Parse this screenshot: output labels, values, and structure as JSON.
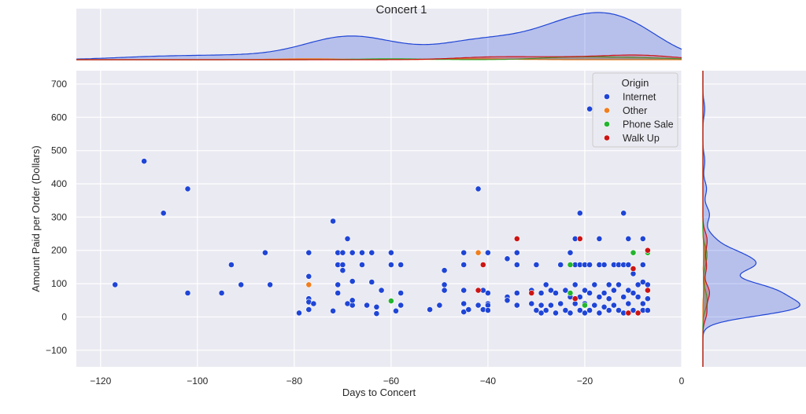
{
  "chart_data": {
    "type": "scatter",
    "title": "Concert 1",
    "xlabel": "Days to Concert",
    "ylabel": "Amount Paid per Order (Dollars)",
    "xlim": [
      -125,
      0
    ],
    "ylim": [
      -150,
      740
    ],
    "x_ticks": [
      -120,
      -100,
      -80,
      -60,
      -40,
      -20,
      0
    ],
    "y_ticks": [
      -100,
      0,
      100,
      200,
      300,
      400,
      500,
      600,
      700
    ],
    "grid": true,
    "legend": {
      "title": "Origin",
      "placement": "top-right"
    },
    "marginals": {
      "top": "kde of Days to Concert by Origin",
      "right": "kde of Amount Paid by Origin"
    },
    "series": [
      {
        "name": "Internet",
        "color": "#1f45d6",
        "points": [
          [
            -117,
            97
          ],
          [
            -111,
            468
          ],
          [
            -107,
            312
          ],
          [
            -102,
            385
          ],
          [
            -102,
            72
          ],
          [
            -95,
            72
          ],
          [
            -93,
            157
          ],
          [
            -91,
            97
          ],
          [
            -86,
            193
          ],
          [
            -85,
            97
          ],
          [
            -79,
            12
          ],
          [
            -77,
            193
          ],
          [
            -77,
            122
          ],
          [
            -77,
            55
          ],
          [
            -77,
            45
          ],
          [
            -77,
            22
          ],
          [
            -76,
            40
          ],
          [
            -72,
            288
          ],
          [
            -72,
            18
          ],
          [
            -71,
            193
          ],
          [
            -71,
            157
          ],
          [
            -71,
            97
          ],
          [
            -71,
            72
          ],
          [
            -70,
            193
          ],
          [
            -70,
            157
          ],
          [
            -70,
            140
          ],
          [
            -69,
            235
          ],
          [
            -69,
            40
          ],
          [
            -68,
            35
          ],
          [
            -68,
            50
          ],
          [
            -68,
            107
          ],
          [
            -68,
            193
          ],
          [
            -66,
            157
          ],
          [
            -66,
            193
          ],
          [
            -65,
            35
          ],
          [
            -64,
            105
          ],
          [
            -64,
            193
          ],
          [
            -63,
            30
          ],
          [
            -63,
            10
          ],
          [
            -62,
            80
          ],
          [
            -60,
            193
          ],
          [
            -60,
            157
          ],
          [
            -59,
            18
          ],
          [
            -58,
            157
          ],
          [
            -58,
            72
          ],
          [
            -58,
            35
          ],
          [
            -52,
            22
          ],
          [
            -50,
            35
          ],
          [
            -49,
            140
          ],
          [
            -49,
            97
          ],
          [
            -49,
            80
          ],
          [
            -45,
            193
          ],
          [
            -45,
            157
          ],
          [
            -45,
            80
          ],
          [
            -45,
            40
          ],
          [
            -45,
            15
          ],
          [
            -44,
            22
          ],
          [
            -42,
            385
          ],
          [
            -42,
            35
          ],
          [
            -41,
            22
          ],
          [
            -40,
            193
          ],
          [
            -40,
            40
          ],
          [
            -40,
            35
          ],
          [
            -40,
            20
          ],
          [
            -40,
            72
          ],
          [
            -41,
            80
          ],
          [
            -36,
            175
          ],
          [
            -36,
            60
          ],
          [
            -36,
            50
          ],
          [
            -34,
            193
          ],
          [
            -34,
            157
          ],
          [
            -34,
            72
          ],
          [
            -34,
            35
          ],
          [
            -31,
            80
          ],
          [
            -31,
            40
          ],
          [
            -30,
            157
          ],
          [
            -30,
            20
          ],
          [
            -29,
            72
          ],
          [
            -29,
            35
          ],
          [
            -29,
            12
          ],
          [
            -28,
            97
          ],
          [
            -28,
            20
          ],
          [
            -27,
            80
          ],
          [
            -27,
            35
          ],
          [
            -26,
            72
          ],
          [
            -26,
            12
          ],
          [
            -25,
            157
          ],
          [
            -25,
            40
          ],
          [
            -24,
            80
          ],
          [
            -24,
            20
          ],
          [
            -23,
            193
          ],
          [
            -23,
            157
          ],
          [
            -23,
            60
          ],
          [
            -23,
            12
          ],
          [
            -22,
            235
          ],
          [
            -22,
            157
          ],
          [
            -22,
            97
          ],
          [
            -22,
            40
          ],
          [
            -21,
            312
          ],
          [
            -21,
            157
          ],
          [
            -21,
            60
          ],
          [
            -21,
            20
          ],
          [
            -20,
            157
          ],
          [
            -20,
            80
          ],
          [
            -20,
            40
          ],
          [
            -20,
            12
          ],
          [
            -19,
            625
          ],
          [
            -19,
            157
          ],
          [
            -19,
            72
          ],
          [
            -19,
            20
          ],
          [
            -18,
            97
          ],
          [
            -18,
            35
          ],
          [
            -17,
            235
          ],
          [
            -17,
            157
          ],
          [
            -17,
            60
          ],
          [
            -17,
            12
          ],
          [
            -16,
            157
          ],
          [
            -16,
            72
          ],
          [
            -16,
            30
          ],
          [
            -15,
            97
          ],
          [
            -15,
            55
          ],
          [
            -15,
            20
          ],
          [
            -14,
            157
          ],
          [
            -14,
            80
          ],
          [
            -14,
            35
          ],
          [
            -13,
            157
          ],
          [
            -13,
            97
          ],
          [
            -13,
            20
          ],
          [
            -12,
            312
          ],
          [
            -12,
            157
          ],
          [
            -12,
            60
          ],
          [
            -12,
            12
          ],
          [
            -11,
            235
          ],
          [
            -11,
            157
          ],
          [
            -11,
            80
          ],
          [
            -11,
            40
          ],
          [
            -10,
            193
          ],
          [
            -10,
            130
          ],
          [
            -10,
            72
          ],
          [
            -10,
            20
          ],
          [
            -9,
            97
          ],
          [
            -9,
            60
          ],
          [
            -9,
            12
          ],
          [
            -8,
            235
          ],
          [
            -8,
            157
          ],
          [
            -8,
            105
          ],
          [
            -8,
            40
          ],
          [
            -8,
            20
          ],
          [
            -7,
            193
          ],
          [
            -7,
            97
          ],
          [
            -7,
            55
          ],
          [
            -7,
            20
          ]
        ]
      },
      {
        "name": "Other",
        "color": "#f07e1e",
        "points": [
          [
            -77,
            97
          ],
          [
            -42,
            193
          ]
        ]
      },
      {
        "name": "Phone Sale",
        "color": "#22b52e",
        "points": [
          [
            -60,
            48
          ],
          [
            -23,
            157
          ],
          [
            -23,
            72
          ],
          [
            -20,
            35
          ],
          [
            -10,
            193
          ],
          [
            -7,
            193
          ]
        ]
      },
      {
        "name": "Walk Up",
        "color": "#cc1414",
        "points": [
          [
            -42,
            80
          ],
          [
            -41,
            157
          ],
          [
            -34,
            235
          ],
          [
            -31,
            72
          ],
          [
            -22,
            55
          ],
          [
            -21,
            235
          ],
          [
            -11,
            12
          ],
          [
            -10,
            145
          ],
          [
            -9,
            12
          ],
          [
            -7,
            200
          ],
          [
            -7,
            80
          ]
        ]
      }
    ]
  }
}
